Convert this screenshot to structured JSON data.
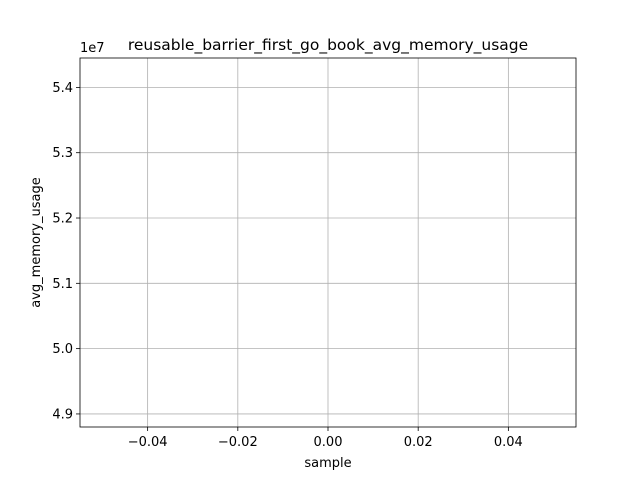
{
  "chart_data": {
    "type": "line",
    "title": "reusable_barrier_first_go_book_avg_memory_usage",
    "xlabel": "sample",
    "ylabel": "avg_memory_usage",
    "y_offset_label": "1e7",
    "xlim": [
      -0.055,
      0.055
    ],
    "ylim": [
      4.88,
      5.445
    ],
    "x_ticks": [
      -0.04,
      -0.02,
      0.0,
      0.02,
      0.04
    ],
    "x_tick_labels": [
      "−0.04",
      "−0.02",
      "0.00",
      "0.02",
      "0.04"
    ],
    "y_ticks": [
      4.9,
      5.0,
      5.1,
      5.2,
      5.3,
      5.4
    ],
    "y_tick_labels": [
      "4.9",
      "5.0",
      "5.1",
      "5.2",
      "5.3",
      "5.4"
    ],
    "grid": true,
    "series": [
      {
        "x": [],
        "y": []
      }
    ],
    "colors": {
      "grid": "#b0b0b0",
      "axis": "#000000",
      "background": "#ffffff"
    }
  }
}
